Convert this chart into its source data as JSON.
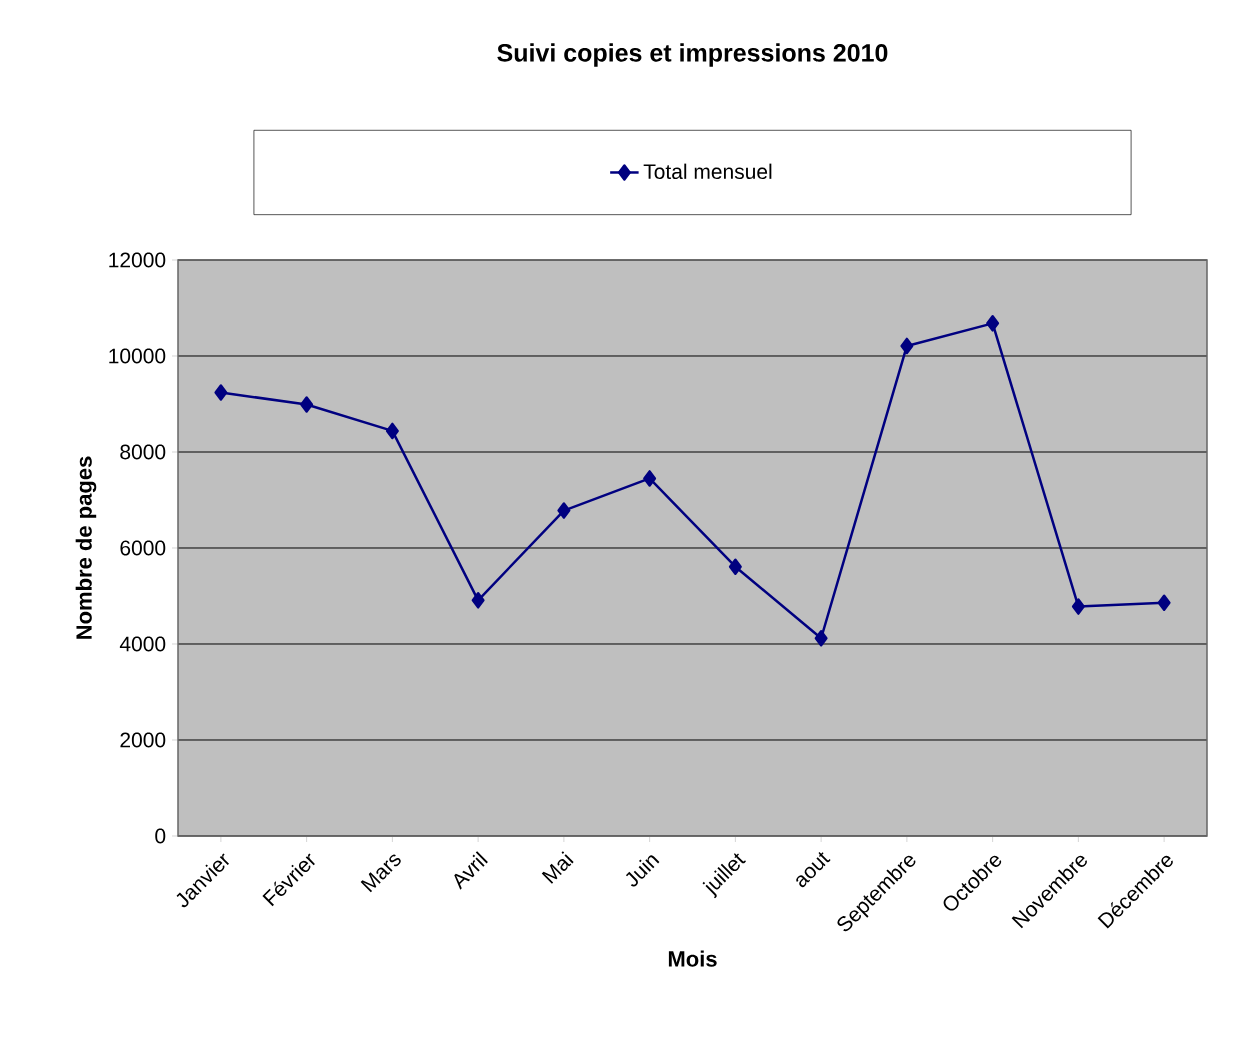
{
  "chart_data": {
    "type": "line",
    "title": "Suivi copies et impressions 2010",
    "xlabel": "Mois",
    "ylabel": "Nombre de pages",
    "categories": [
      "Janvier",
      "Février",
      "Mars",
      "Avril",
      "Mai",
      "Juin",
      "juillet",
      "aout",
      "Septembre",
      "Octobre",
      "Novembre",
      "Décembre"
    ],
    "series": [
      {
        "name": "Total mensuel",
        "color": "#000080",
        "values": [
          9240,
          8990,
          8440,
          4910,
          6780,
          7450,
          5610,
          4120,
          10210,
          10680,
          4780,
          4860
        ]
      }
    ],
    "ylim": [
      0,
      12000
    ],
    "yticks": [
      0,
      2000,
      4000,
      6000,
      8000,
      10000,
      12000
    ],
    "grid": "y",
    "legend": "top",
    "marker": "diamond",
    "line_style": "solid"
  }
}
